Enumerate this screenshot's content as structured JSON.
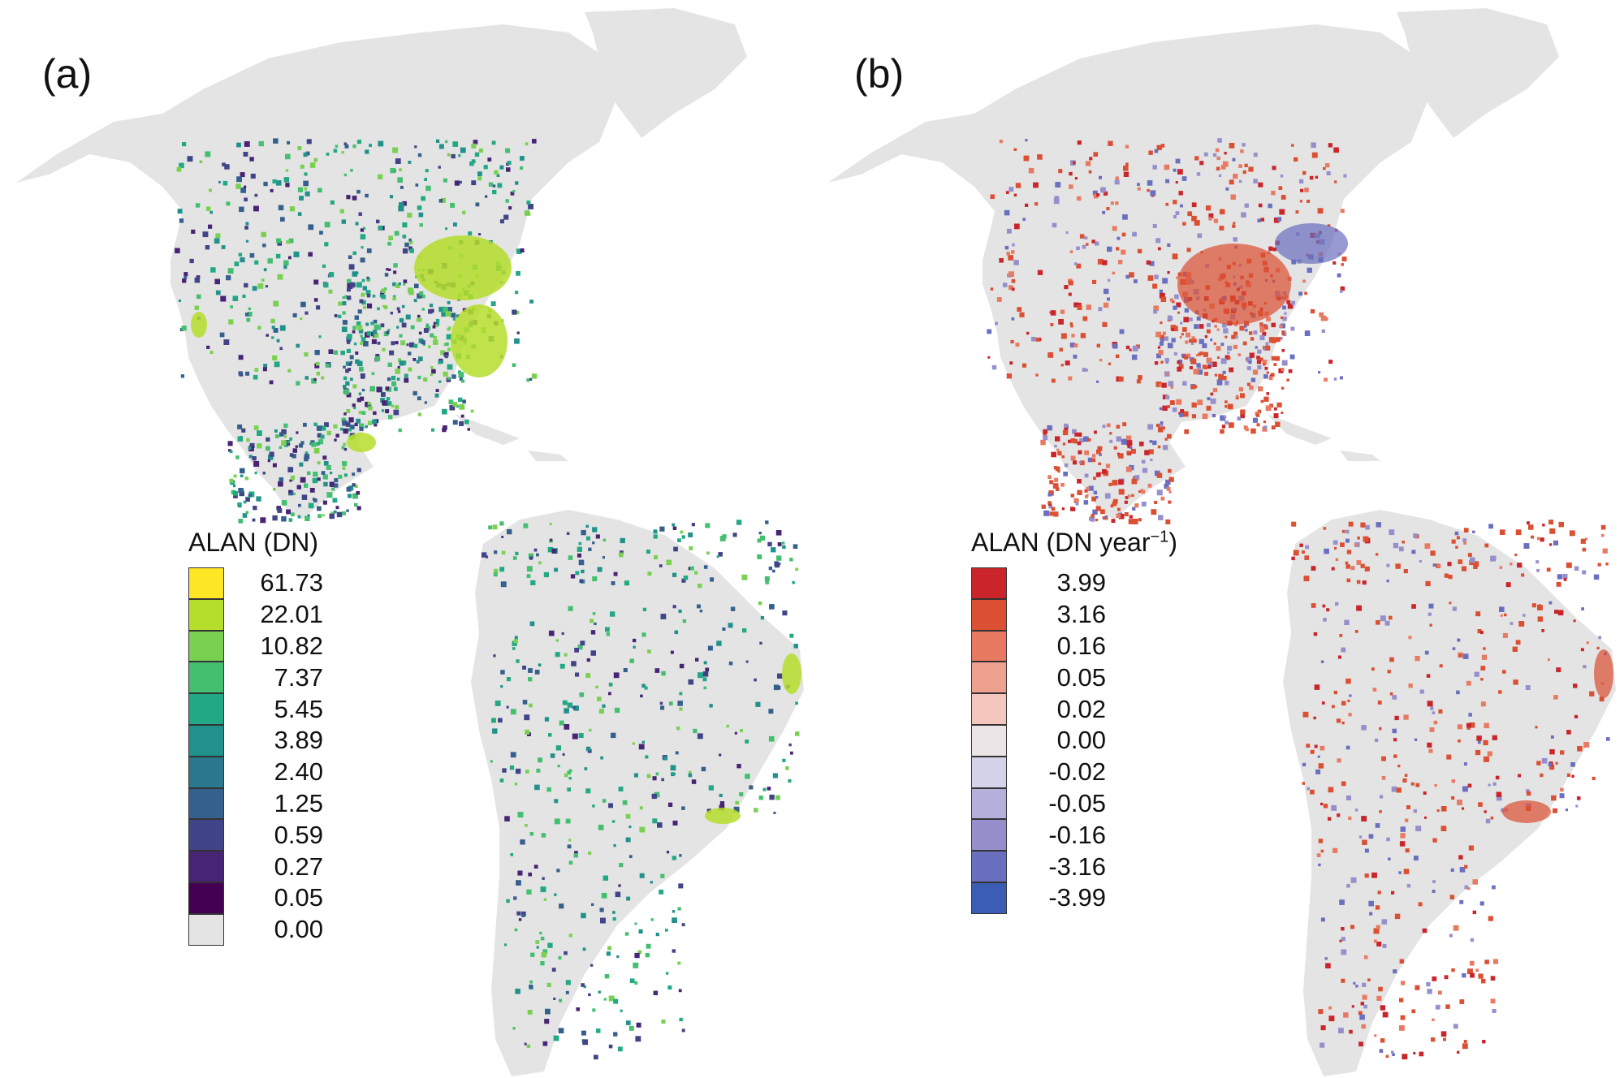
{
  "panels": [
    {
      "label": "(a)",
      "legend_title": "ALAN (DN)",
      "legend": [
        {
          "value": "61.73",
          "color": "#fde725"
        },
        {
          "value": "22.01",
          "color": "#b5de2b"
        },
        {
          "value": "10.82",
          "color": "#7ad151"
        },
        {
          "value": "7.37",
          "color": "#44bf70"
        },
        {
          "value": "5.45",
          "color": "#22a884"
        },
        {
          "value": "3.89",
          "color": "#21918c"
        },
        {
          "value": "2.40",
          "color": "#2a788e"
        },
        {
          "value": "1.25",
          "color": "#355f8d"
        },
        {
          "value": "0.59",
          "color": "#414487"
        },
        {
          "value": "0.27",
          "color": "#482475"
        },
        {
          "value": "0.05",
          "color": "#440154"
        },
        {
          "value": "0.00",
          "color": "#e4e4e4"
        }
      ]
    },
    {
      "label": "(b)",
      "legend_title": "ALAN (DN year",
      "legend_title_sup": "−1",
      "legend_title_end": ")",
      "legend": [
        {
          "value": "3.99",
          "color": "#c9252b"
        },
        {
          "value": "3.16",
          "color": "#db4f32"
        },
        {
          "value": "0.16",
          "color": "#e97a62"
        },
        {
          "value": "0.05",
          "color": "#efa190"
        },
        {
          "value": "0.02",
          "color": "#f4c6bd"
        },
        {
          "value": "0.00",
          "color": "#ebe5e8"
        },
        {
          "value": "-0.02",
          "color": "#d5d3ea"
        },
        {
          "value": "-0.05",
          "color": "#b3b0dc"
        },
        {
          "value": "-0.16",
          "color": "#9590cc"
        },
        {
          "value": "-3.16",
          "color": "#6a6fbf"
        },
        {
          "value": "-3.99",
          "color": "#3b5eb4"
        }
      ]
    }
  ],
  "map_colors": {
    "land": "#e4e4e4"
  }
}
